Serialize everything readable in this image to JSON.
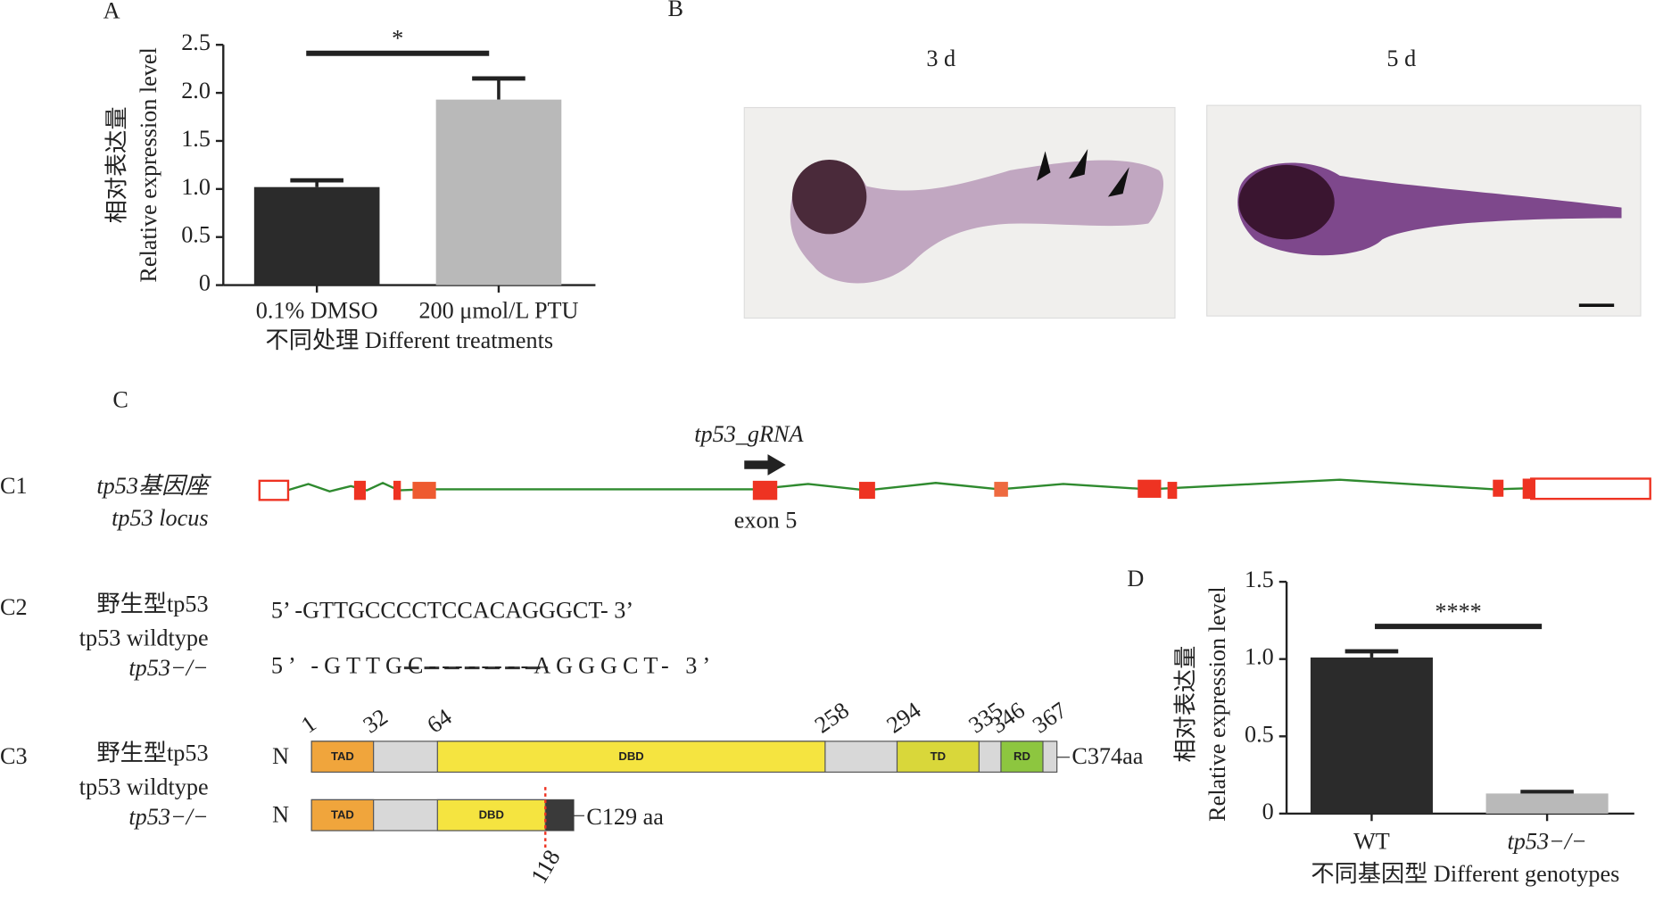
{
  "chart_data": [
    {
      "type": "bar",
      "panel": "A",
      "ylabel": [
        "相对表达量",
        "Relative expression level"
      ],
      "xlabel": "不同处理 Different treatments",
      "categories": [
        "0.1% DMSO",
        "200 μmol/L PTU"
      ],
      "values": [
        1.02,
        1.93
      ],
      "errors": [
        0.07,
        0.22
      ],
      "colors": [
        "#2b2b2b",
        "#b9b9b9"
      ],
      "ylim": [
        0,
        2.5
      ],
      "yticks": [
        0,
        0.5,
        {
          "value": 1,
          "label": "1.0"
        },
        1.5,
        {
          "value": 2,
          "label": "2.0"
        },
        2.5
      ],
      "significance": "*"
    },
    {
      "type": "bar",
      "panel": "D",
      "ylabel": [
        "相对表达量",
        "Relative expression level"
      ],
      "xlabel": "不同基因型 Different genotypes",
      "categories": [
        "WT",
        "tp53−/−"
      ],
      "values": [
        1.01,
        0.13
      ],
      "errors": [
        0.04,
        0.01
      ],
      "colors": [
        "#2b2b2b",
        "#b9b9b9"
      ],
      "ylim": [
        0,
        1.5
      ],
      "yticks": [
        0,
        0.5,
        {
          "value": 1,
          "label": "1.0"
        },
        1.5
      ],
      "significance": "****"
    }
  ],
  "panel_b": {
    "label": "B",
    "images": [
      "3 d",
      "5 d"
    ]
  },
  "panel_c": {
    "label": "C",
    "c1": {
      "label": "C1",
      "name_cn": "tp53基因座",
      "name_en": "tp53 locus",
      "grna": "tp53_gRNA",
      "exon": "exon 5"
    },
    "c2": {
      "label": "C2",
      "wt_cn": "野生型tp53",
      "wt_en": "tp53 wildtype",
      "mut": "tp53−/−",
      "wt_seq": "5’ -GTTGCCCCTCCACAGGGCT- 3’",
      "mut_seq": "5’ -GTTGC--------AGGGCT- 3’"
    },
    "c3": {
      "label": "C3",
      "wt_cn": "野生型tp53",
      "wt_en": "tp53 wildtype",
      "mut": "tp53−/−",
      "n": "N",
      "length": 374,
      "end": "C374aa",
      "positions": [
        1,
        32,
        64,
        258,
        294,
        335,
        346,
        367
      ],
      "domains": [
        {
          "name": "TAD",
          "start": 1,
          "end": 32,
          "color": "#f0a53c"
        },
        {
          "name": "DBD",
          "start": 64,
          "end": 258,
          "color": "#f5e440"
        },
        {
          "name": "TD",
          "start": 294,
          "end": 335,
          "color": "#d9d73a"
        },
        {
          "name": "RD",
          "start": 346,
          "end": 367,
          "color": "#8dc63f"
        }
      ],
      "mut_length": 129,
      "mut_end": "C129 aa",
      "mut_site": 118,
      "mut_domains": [
        {
          "name": "TAD",
          "start": 1,
          "end": 32,
          "color": "#f0a53c"
        },
        {
          "name": "DBD",
          "start": 64,
          "end": 118,
          "color": "#f5e440"
        }
      ]
    }
  }
}
